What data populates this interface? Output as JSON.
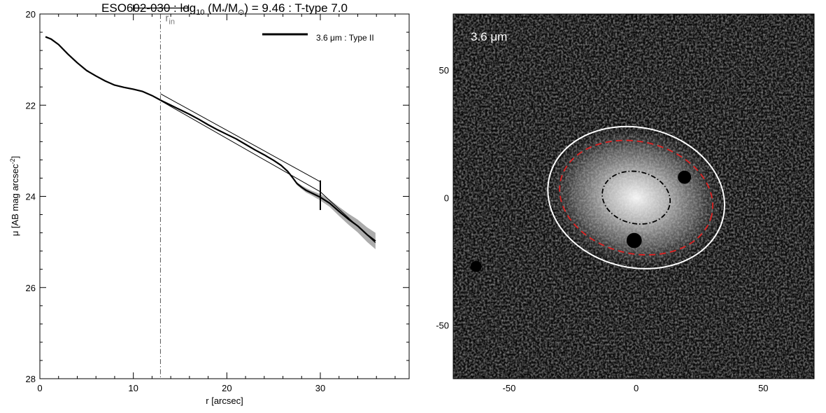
{
  "chart_data": [
    {
      "type": "line",
      "title_main": "ESO602-030 : log",
      "title_sub": "10",
      "title_rest_a": " (M",
      "title_star": "*",
      "title_rest_b": "/M",
      "title_sun": "⊙",
      "title_rest_c": ") = 9.46 : T-type 7.0",
      "xlabel": "r [arcsec]",
      "ylabel_main": "μ [AB mag arcsec",
      "ylabel_sup": "-2",
      "ylabel_end": "]",
      "xlim": [
        0,
        39.5
      ],
      "ylim": [
        28,
        20
      ],
      "y_inverted": true,
      "x_ticks": [
        0,
        10,
        20,
        30
      ],
      "x_minor_step": 2,
      "y_ticks": [
        20,
        22,
        24,
        26,
        28
      ],
      "y_minor_step": 0.4,
      "legend": {
        "label": "3.6 μm : Type II",
        "placement": "top-right"
      },
      "r_in_label_main": "r",
      "r_in_label_sub": "in",
      "r_in_value": 12.9,
      "r_in_range": [
        10.0,
        15.9
      ],
      "r_in_range_y": 19.87,
      "break_marker": {
        "x": 30.0,
        "y_range": [
          23.65,
          24.3
        ]
      },
      "series": [
        {
          "name": "3.6 μm : Type II",
          "x": [
            0.6,
            1.2,
            2.0,
            3.0,
            4.0,
            5.0,
            6.0,
            7.0,
            8.0,
            9.0,
            10.0,
            11.0,
            12.0,
            13.0,
            14.0,
            15.0,
            16.0,
            17.0,
            18.0,
            19.0,
            20.0,
            21.0,
            22.0,
            23.0,
            24.0,
            25.0,
            25.8,
            26.5,
            27.0,
            27.5,
            28.0,
            28.5,
            29.0,
            29.5,
            30.0,
            31.0,
            32.0,
            33.0,
            34.0,
            35.0,
            35.9
          ],
          "y": [
            20.5,
            20.55,
            20.67,
            20.88,
            21.07,
            21.24,
            21.36,
            21.47,
            21.56,
            21.61,
            21.65,
            21.7,
            21.79,
            21.9,
            22.0,
            22.1,
            22.2,
            22.31,
            22.43,
            22.54,
            22.64,
            22.74,
            22.86,
            22.98,
            23.09,
            23.21,
            23.32,
            23.45,
            23.58,
            23.72,
            23.8,
            23.87,
            23.92,
            23.97,
            24.02,
            24.15,
            24.33,
            24.5,
            24.65,
            24.84,
            24.98
          ],
          "band": [
            0,
            0,
            0,
            0,
            0,
            0,
            0,
            0,
            0,
            0,
            0,
            0,
            0,
            0,
            0,
            0,
            0,
            0,
            0,
            0,
            0,
            0,
            0,
            0,
            0,
            0,
            0,
            0,
            0,
            0.03,
            0.04,
            0.05,
            0.05,
            0.06,
            0.07,
            0.08,
            0.1,
            0.12,
            0.14,
            0.16,
            0.18
          ]
        }
      ],
      "fits": [
        {
          "x": [
            12.9,
            30.0
          ],
          "y": [
            21.75,
            23.68
          ]
        },
        {
          "x": [
            12.9,
            30.0
          ],
          "y": [
            21.9,
            23.9
          ]
        },
        {
          "x": [
            30.0,
            35.9
          ],
          "y": [
            23.9,
            25.02
          ]
        }
      ]
    },
    {
      "type": "heatmap",
      "image_label": "3.6 μm",
      "xlim": [
        -72,
        70
      ],
      "ylim": [
        -71,
        72
      ],
      "x_ticks": [
        -50,
        0,
        50
      ],
      "x_minor_step": 10,
      "y_ticks": [
        -50,
        0,
        50
      ],
      "y_minor_step": 10,
      "colormap": "grayscale",
      "ellipses": [
        {
          "role": "outer",
          "color": "#ffffff",
          "style": "solid",
          "cx": 0.0,
          "cy": 0.0,
          "a": 35.1,
          "b": 27.5,
          "angle_deg": -13
        },
        {
          "role": "mid",
          "color": "#dd2222",
          "style": "dashed",
          "cx": 0.0,
          "cy": 0.0,
          "a": 30.5,
          "b": 22.0,
          "angle_deg": -13
        },
        {
          "role": "inner",
          "color": "#000000",
          "style": "dash-dot",
          "cx": 0.0,
          "cy": 0.0,
          "a": 13.5,
          "b": 10.2,
          "angle_deg": -13
        }
      ],
      "masks": [
        {
          "x": 19.0,
          "y": 8.0,
          "r": 2.6
        },
        {
          "x": -0.8,
          "y": -16.8,
          "r": 3.0
        },
        {
          "x": -63.0,
          "y": -27.0,
          "r": 2.2
        }
      ]
    }
  ]
}
